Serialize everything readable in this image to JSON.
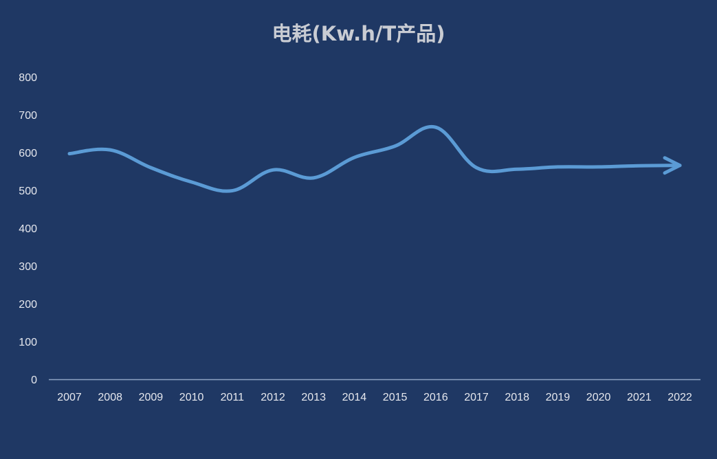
{
  "chart_data": {
    "type": "line",
    "title": "电耗(Kw.h/T产品)",
    "xlabel": "",
    "ylabel": "",
    "ylim": [
      0,
      800
    ],
    "yticks": [
      0,
      100,
      200,
      300,
      400,
      500,
      600,
      700,
      800
    ],
    "categories": [
      "2007",
      "2008",
      "2009",
      "2010",
      "2011",
      "2012",
      "2013",
      "2014",
      "2015",
      "2016",
      "2017",
      "2018",
      "2019",
      "2020",
      "2021",
      "2022"
    ],
    "values": [
      597,
      607,
      560,
      522,
      499,
      554,
      533,
      587,
      617,
      667,
      560,
      556,
      562,
      562,
      565,
      566
    ],
    "grid": false,
    "legend": "none",
    "colors": {
      "background": "#1f3864",
      "line": "#5b9bd5",
      "axis": "#8ea3c4",
      "text": "#e6e8ee",
      "title": "#c9ccd3"
    }
  }
}
